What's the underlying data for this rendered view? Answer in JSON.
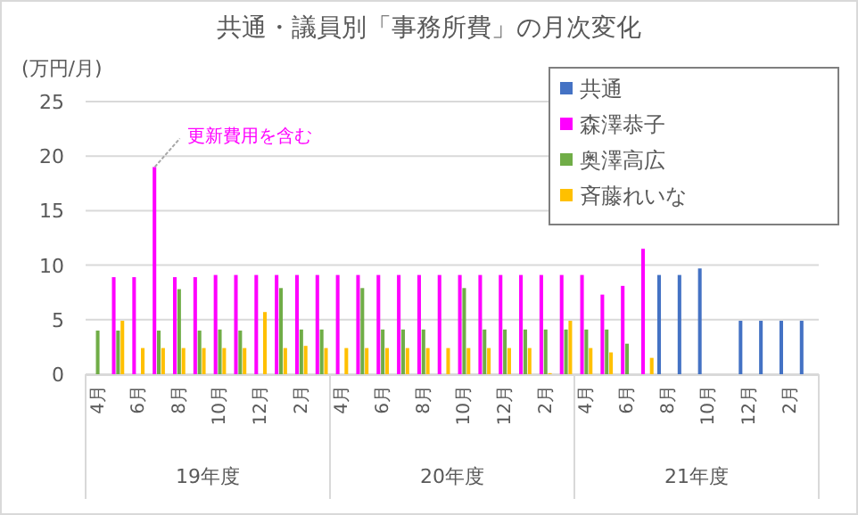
{
  "chart_data": {
    "type": "bar",
    "title": "共通・議員別「事務所費」の月次変化",
    "ylabel": "(万円/月)",
    "categories": [
      "4月",
      null,
      "6月",
      null,
      "8月",
      null,
      "10月",
      null,
      "12月",
      null,
      "2月",
      null,
      "4月",
      null,
      "6月",
      null,
      "8月",
      null,
      "10月",
      null,
      "12月",
      null,
      "2月",
      null,
      "4月",
      null,
      "6月",
      null,
      "8月",
      null,
      "10月",
      null,
      "12月",
      null,
      "2月",
      null
    ],
    "series": [
      {
        "name": "共通",
        "color": "#4472c4",
        "values": [
          null,
          null,
          null,
          null,
          null,
          null,
          null,
          null,
          null,
          null,
          null,
          null,
          null,
          null,
          null,
          null,
          null,
          null,
          null,
          null,
          null,
          null,
          null,
          null,
          null,
          null,
          null,
          null,
          9.1,
          9.1,
          9.7,
          null,
          4.9,
          4.9,
          4.9,
          4.9
        ]
      },
      {
        "name": "森澤恭子",
        "color": "#ff00ff",
        "values": [
          null,
          8.9,
          8.9,
          19,
          8.9,
          8.9,
          9.1,
          9.1,
          9.1,
          9.1,
          9.1,
          9.1,
          9.1,
          9.1,
          9.1,
          9.1,
          9.1,
          9.1,
          9.1,
          9.1,
          9.1,
          9.1,
          9.1,
          9.1,
          9.1,
          7.3,
          8.1,
          11.5,
          null,
          null,
          null,
          null,
          null,
          null,
          null,
          null
        ]
      },
      {
        "name": "奥澤高広",
        "color": "#70ad47",
        "values": [
          4,
          4,
          null,
          4,
          7.8,
          4,
          4.1,
          4,
          null,
          7.9,
          4.1,
          4.1,
          null,
          7.9,
          4.1,
          4.1,
          4.1,
          null,
          7.9,
          4.1,
          4.1,
          4.1,
          4.1,
          4.1,
          4.1,
          4.1,
          2.8,
          null,
          null,
          null,
          null,
          null,
          null,
          null,
          null,
          null
        ]
      },
      {
        "name": "斉藤れいな",
        "color": "#ffc000",
        "values": [
          null,
          4.9,
          2.4,
          2.4,
          2.4,
          2.4,
          2.4,
          2.4,
          5.7,
          2.4,
          2.6,
          2.4,
          2.4,
          2.4,
          2.4,
          2.4,
          2.4,
          2.4,
          2.4,
          2.4,
          2.4,
          2.4,
          0.1,
          4.9,
          2.4,
          2.0,
          null,
          1.5,
          null,
          null,
          null,
          null,
          null,
          null,
          null,
          null
        ]
      }
    ],
    "ylim": [
      0,
      25
    ],
    "yticks": [
      0,
      5,
      10,
      15,
      20,
      25
    ],
    "grid": "y",
    "legend": "top right",
    "annotations": [
      "更新費用を含む",
      "19年度",
      "20年度",
      "21年度"
    ]
  }
}
